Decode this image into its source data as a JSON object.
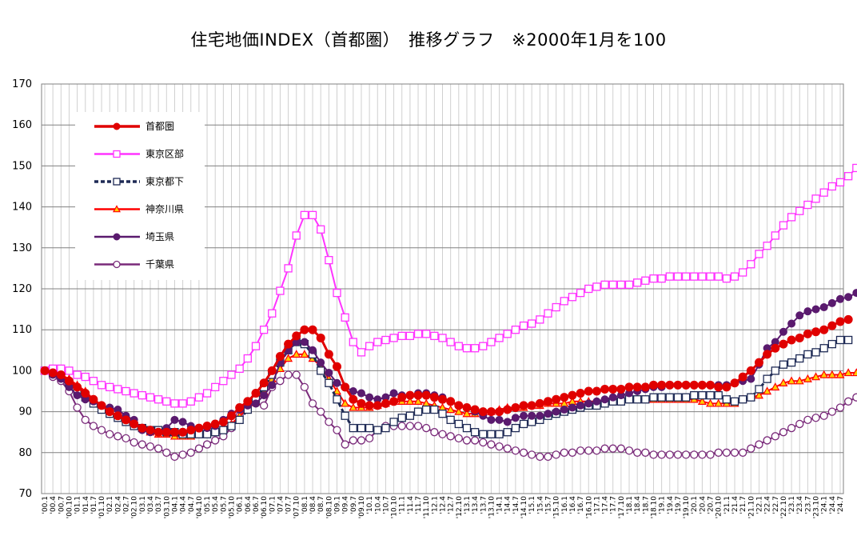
{
  "chart_data": {
    "type": "line",
    "title": "住宅地価INDEX（首都圏）　推移グラフ　※2000年1月を100",
    "xlabel": "",
    "ylabel": "",
    "ylim": [
      70,
      170
    ],
    "yticks": [
      70,
      80,
      90,
      100,
      110,
      120,
      130,
      140,
      150,
      160,
      170
    ],
    "grid": true,
    "legend_position": "top-left",
    "x_interval_months": 3,
    "x_labels": [
      "'00.1",
      "'00.4",
      "'00.7",
      "'00.10",
      "'01.1",
      "'01.4",
      "'01.7",
      "'01.10",
      "'02.1",
      "'02.4",
      "'02.7",
      "'02.10",
      "'03.1",
      "'03.4",
      "'03.7",
      "'03.10",
      "'04.1",
      "'04.4",
      "'04.7",
      "'04.10",
      "'05.1",
      "'05.4",
      "'05.7",
      "'05.10",
      "'06.1",
      "'06.4",
      "'06.7",
      "'06.10",
      "'07.1",
      "'07.4",
      "'07.7",
      "'07.10",
      "'08.1",
      "'08.4",
      "'08.7",
      "'08.10",
      "'09.1",
      "'09.4",
      "'09.7",
      "'09.10",
      "'10.1",
      "'10.4",
      "'10.7",
      "'10.10",
      "'11.1",
      "'11.4",
      "'11.7",
      "'11.10",
      "'12.1",
      "'12.4",
      "'12.7",
      "'12.10",
      "'13.1",
      "'13.4",
      "'13.7",
      "'13.10",
      "'14.1",
      "'14.4",
      "'14.7",
      "'14.10",
      "'15.1",
      "'15.4",
      "'15.7",
      "'15.10",
      "'16.1",
      "'16.4",
      "'16.7",
      "'16.10",
      "'17.1",
      "'17.4",
      "'17.7",
      "'17.10",
      "'18.1",
      "'18.4",
      "'18.7",
      "'18.10",
      "'19.1",
      "'19.4",
      "'19.7",
      "'19.10",
      "'20.1",
      "'20.4",
      "'20.7",
      "'20.10",
      "'21.1",
      "'21.4",
      "'21.7",
      "'21.10",
      "'22.1",
      "'22.4",
      "'22.7",
      "'22.10",
      "'23.1",
      "'23.4",
      "'23.7",
      "'23.10",
      "'24.1",
      "'24.4",
      "'24.7"
    ],
    "series": [
      {
        "name": "首都圏",
        "color": "#e00000",
        "marker": "filled-circle",
        "dash": false,
        "width": 3,
        "values": [
          100,
          99.5,
          99,
          97.5,
          96,
          94.5,
          93,
          91.5,
          90,
          89,
          88,
          87,
          86,
          85.5,
          85,
          85,
          85,
          85,
          85.5,
          86,
          86.5,
          87,
          87.5,
          89,
          91,
          92.5,
          94.5,
          97,
          100,
          103.5,
          106.5,
          108.5,
          110,
          110,
          108,
          104,
          101,
          96,
          93,
          92,
          91.5,
          91.5,
          92,
          92.5,
          93.5,
          94,
          94,
          94,
          93.5,
          93,
          92.5,
          91.5,
          91,
          90.5,
          90,
          90,
          90,
          90.5,
          91,
          91.5,
          91.5,
          92,
          92.5,
          93,
          93.5,
          94,
          94.5,
          95,
          95,
          95.5,
          95.5,
          95.5,
          96,
          96,
          96,
          96.5,
          96.5,
          96.5,
          96.5,
          96.5,
          96.5,
          96.5,
          96.5,
          96,
          96,
          97,
          98.5,
          100,
          102,
          104,
          105.5,
          106.5,
          107.5,
          108,
          109,
          109.5,
          110,
          111,
          112,
          112.5
        ]
      },
      {
        "name": "東京区部",
        "color": "#ff33ff",
        "marker": "open-square",
        "dash": false,
        "width": 2,
        "values": [
          100,
          100.5,
          100.5,
          100,
          99,
          98.5,
          97.5,
          96.5,
          96,
          95.5,
          95,
          94.5,
          94,
          93.5,
          93,
          92.5,
          92,
          92,
          92.5,
          93.5,
          94.5,
          96,
          97.5,
          99,
          100.5,
          103,
          106,
          110,
          114,
          119.5,
          125,
          133,
          138,
          138,
          134.5,
          127,
          119,
          113,
          107,
          104.5,
          106,
          107,
          107.5,
          108,
          108.5,
          108.5,
          109,
          109,
          108.5,
          108,
          107,
          106,
          105.5,
          105.5,
          106,
          107,
          108,
          109,
          110,
          111,
          111.5,
          112.5,
          114,
          115.5,
          117,
          118,
          119,
          120,
          120.5,
          121,
          121,
          121,
          121,
          121.5,
          122,
          122.5,
          122.5,
          123,
          123,
          123,
          123,
          123,
          123,
          123,
          122.5,
          123,
          124,
          126,
          128.5,
          130.5,
          133,
          135.5,
          137.5,
          139,
          140.5,
          142,
          143.5,
          145,
          146,
          147.5,
          149.5
        ]
      },
      {
        "name": "東京都下",
        "color": "#1e2a55",
        "marker": "open-square",
        "dash": true,
        "width": 3,
        "values": [
          100,
          99.5,
          99,
          97,
          95,
          93.5,
          92,
          90.5,
          89.5,
          88.5,
          87.5,
          86.5,
          86,
          85.5,
          85.5,
          85,
          85,
          84.5,
          84.5,
          84.5,
          84.5,
          85,
          85.5,
          86.5,
          88,
          90.5,
          93,
          96,
          99,
          102,
          105,
          107,
          106.5,
          104,
          100,
          97,
          93,
          89,
          86,
          86,
          86,
          85.5,
          86,
          87.5,
          88.5,
          89,
          90,
          90.5,
          90.5,
          89.5,
          88,
          87,
          86,
          85,
          84.5,
          84.5,
          84.5,
          85,
          86,
          87,
          87.5,
          88,
          89,
          89.5,
          90,
          90.5,
          91,
          91.5,
          91.5,
          92,
          92.5,
          92.5,
          93,
          93,
          93,
          93.5,
          93.5,
          93.5,
          93.5,
          93.5,
          94,
          94,
          94,
          94,
          93,
          92.5,
          93,
          93.5,
          95.5,
          98,
          100,
          101.5,
          102,
          103,
          104,
          104.5,
          105.5,
          106.5,
          107.5,
          107.5
        ]
      },
      {
        "name": "神奈川県",
        "color": "#ff0000",
        "marker": "filled-triangle",
        "dash": false,
        "width": 2,
        "values": [
          100,
          99.5,
          99,
          98,
          96.5,
          95,
          93,
          91.5,
          90,
          89,
          88,
          87,
          86,
          85,
          84.5,
          84.5,
          84,
          84,
          84,
          84.5,
          85,
          85.5,
          86,
          87,
          89,
          90.5,
          92.5,
          95,
          98,
          100.5,
          103,
          104,
          104,
          103,
          101,
          98,
          95,
          92,
          91,
          91,
          91,
          91.5,
          92,
          92.5,
          92.5,
          92.5,
          92.5,
          92,
          91.5,
          91,
          90.5,
          90,
          89.5,
          89.5,
          90,
          90,
          90.5,
          91,
          91,
          91,
          91.5,
          91.5,
          92,
          92,
          92,
          92.5,
          92.5,
          92.5,
          92.5,
          92.5,
          93,
          93,
          93,
          93,
          93,
          93,
          93,
          93,
          93,
          93,
          93,
          92.5,
          92,
          92,
          92,
          92,
          93,
          93.5,
          94,
          95,
          96,
          97,
          97.5,
          97.5,
          98,
          98.5,
          99,
          99,
          99,
          99.5,
          99.5
        ]
      },
      {
        "name": "埼玉県",
        "color": "#5a1a6e",
        "marker": "filled-circle",
        "dash": false,
        "width": 2,
        "values": [
          100,
          99,
          98,
          96,
          94,
          93,
          92.5,
          91.5,
          91,
          90.5,
          89,
          88,
          85.5,
          85,
          85,
          86,
          88,
          87.5,
          86.5,
          86,
          86,
          86.5,
          88,
          89.5,
          90.5,
          91.5,
          92,
          94,
          96.5,
          102,
          105,
          107,
          107,
          105,
          102,
          99.5,
          97,
          96,
          95,
          94.5,
          93.5,
          93,
          93.5,
          94.5,
          94,
          94,
          94.5,
          94.5,
          94,
          93.5,
          92.5,
          91.5,
          91,
          90,
          89,
          88,
          88,
          87.5,
          88.5,
          89,
          89,
          89,
          89.5,
          90,
          90.5,
          91,
          91.5,
          92,
          92.5,
          93,
          93.5,
          94,
          94.5,
          95,
          95.5,
          96,
          96,
          96.5,
          96.5,
          96.5,
          96.5,
          96.5,
          96.5,
          96.5,
          96.5,
          97,
          97.5,
          98,
          101.5,
          105.5,
          107,
          109.5,
          111.5,
          113.5,
          114.5,
          115,
          115.5,
          116.5,
          117.5,
          118,
          119
        ]
      },
      {
        "name": "千葉県",
        "color": "#7a2a7a",
        "marker": "open-circle",
        "dash": false,
        "width": 2,
        "values": [
          100,
          98.5,
          97.5,
          95,
          91,
          88,
          86.5,
          85.5,
          84.5,
          84,
          83.5,
          82.5,
          82,
          81.5,
          81,
          80,
          79,
          79.5,
          80,
          81,
          82,
          83,
          84,
          86,
          89,
          91.5,
          92,
          91.5,
          96,
          97.5,
          99,
          99,
          96,
          92,
          90,
          87.5,
          85.5,
          82,
          83,
          83,
          83.5,
          85.5,
          86.5,
          86.5,
          86.5,
          86.5,
          86.5,
          86,
          85,
          84.5,
          84,
          83.5,
          83,
          83,
          82.5,
          82,
          81.5,
          81,
          80.5,
          80,
          79.5,
          79,
          79,
          79.5,
          80,
          80,
          80.5,
          80.5,
          80.5,
          81,
          81,
          81,
          80.5,
          80,
          80,
          79.5,
          79.5,
          79.5,
          79.5,
          79.5,
          79.5,
          79.5,
          79.5,
          80,
          80,
          80,
          80,
          81,
          82,
          83,
          84,
          85,
          86,
          87,
          88,
          88.5,
          89,
          90,
          91,
          92.5,
          93.5
        ]
      }
    ]
  }
}
